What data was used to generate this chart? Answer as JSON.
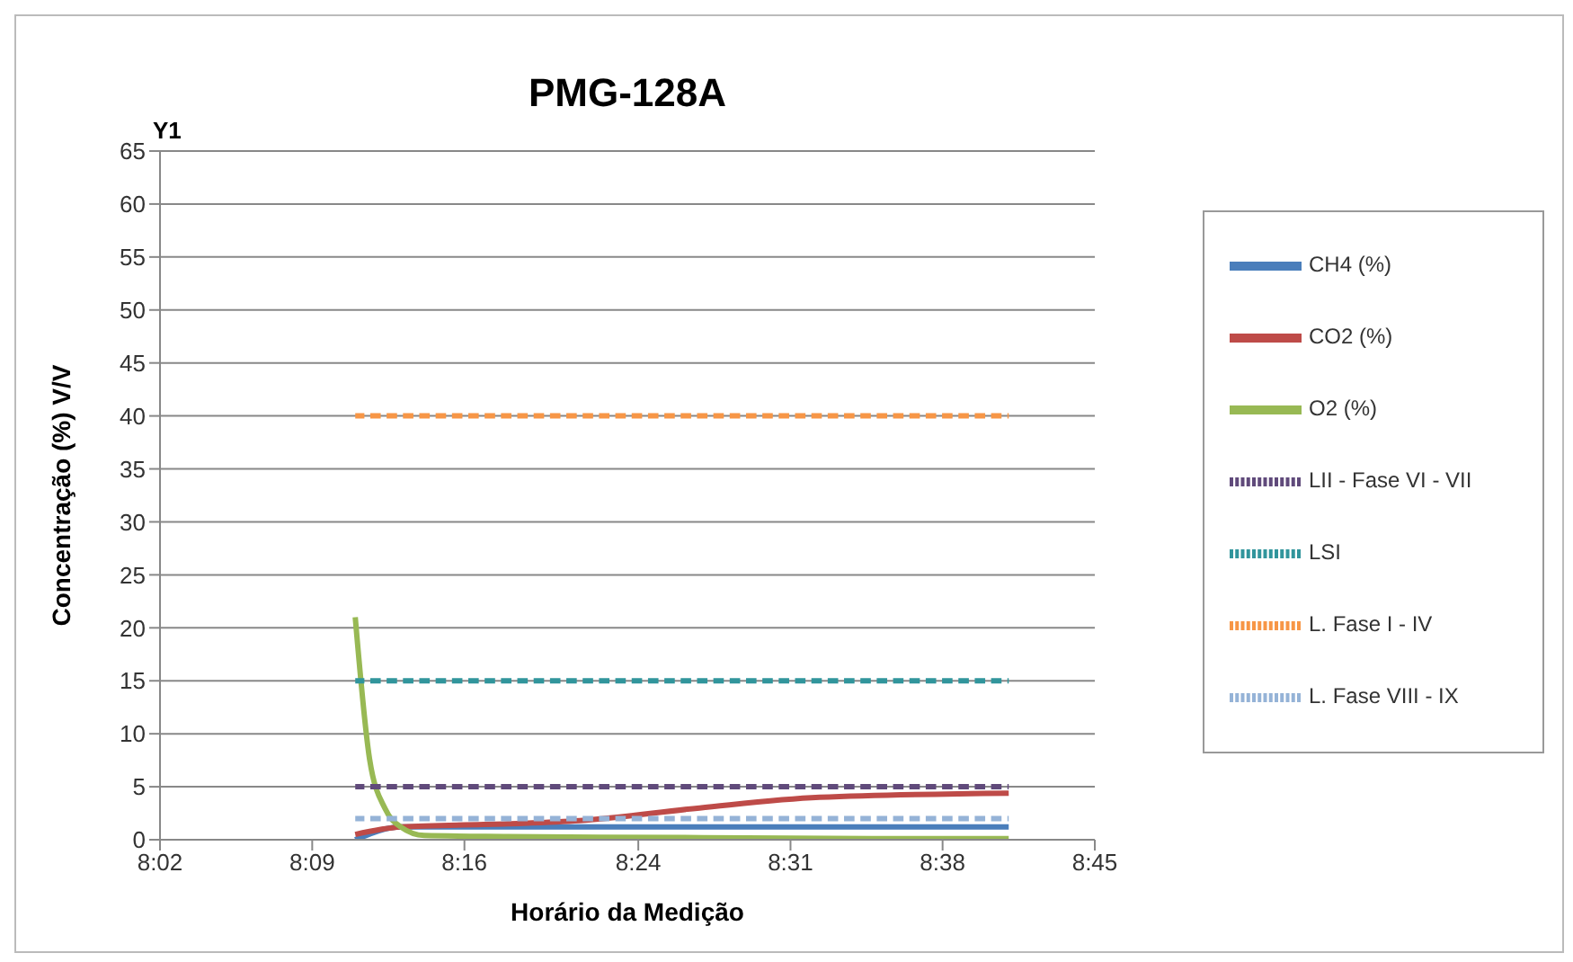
{
  "chart_data": {
    "type": "line",
    "title": "PMG-128A",
    "xlabel": "Horário da Medição",
    "ylabel": "Concentração (%) V/V",
    "annotations": [
      "Y1"
    ],
    "xlim": [
      8.0333,
      8.75
    ],
    "xticks": [
      {
        "value": 8.0333,
        "label": "8:02"
      },
      {
        "value": 8.15,
        "label": "8:09"
      },
      {
        "value": 8.2667,
        "label": "8:16"
      },
      {
        "value": 8.4,
        "label": "8:24"
      },
      {
        "value": 8.5167,
        "label": "8:31"
      },
      {
        "value": 8.6333,
        "label": "8:38"
      },
      {
        "value": 8.75,
        "label": "8:45"
      }
    ],
    "ylim": [
      0,
      65
    ],
    "yticks": [
      0,
      5,
      10,
      15,
      20,
      25,
      30,
      35,
      40,
      45,
      50,
      55,
      60,
      65
    ],
    "grid": "y",
    "legend": "right",
    "marker": "none",
    "series": [
      {
        "name": "CH4 (%)",
        "color": "#4a7ebb",
        "line_style": "solid",
        "x": [
          8.183,
          8.218,
          8.45,
          8.684
        ],
        "values": [
          0,
          1.2,
          1.2,
          1.2
        ]
      },
      {
        "name": "CO2 (%)",
        "color": "#be4b48",
        "line_style": "solid",
        "x": [
          8.183,
          8.218,
          8.3,
          8.355,
          8.447,
          8.539,
          8.684
        ],
        "values": [
          0.5,
          1.2,
          1.5,
          1.8,
          3.0,
          4.0,
          4.4
        ]
      },
      {
        "name": "O2 (%)",
        "color": "#98b954",
        "line_style": "solid",
        "x": [
          8.183,
          8.194,
          8.206,
          8.218,
          8.236,
          8.3,
          8.45,
          8.6,
          8.684
        ],
        "values": [
          21,
          7.6,
          2.9,
          1.2,
          0.4,
          0.3,
          0.2,
          0.1,
          0.1
        ]
      },
      {
        "name": "LII - Fase VI - VII",
        "color": "#604a7b",
        "line_style": "dashed",
        "x": [
          8.183,
          8.684
        ],
        "values": [
          5,
          5
        ]
      },
      {
        "name": "LSI",
        "color": "#31959c",
        "line_style": "dashed",
        "x": [
          8.183,
          8.684
        ],
        "values": [
          15,
          15
        ]
      },
      {
        "name": "L. Fase I - IV",
        "color": "#f79646",
        "line_style": "dashed",
        "x": [
          8.183,
          8.684
        ],
        "values": [
          40,
          40
        ]
      },
      {
        "name": "L. Fase VIII - IX",
        "color": "#95b3d7",
        "line_style": "dashed",
        "x": [
          8.183,
          8.684
        ],
        "values": [
          2,
          2
        ]
      }
    ]
  }
}
